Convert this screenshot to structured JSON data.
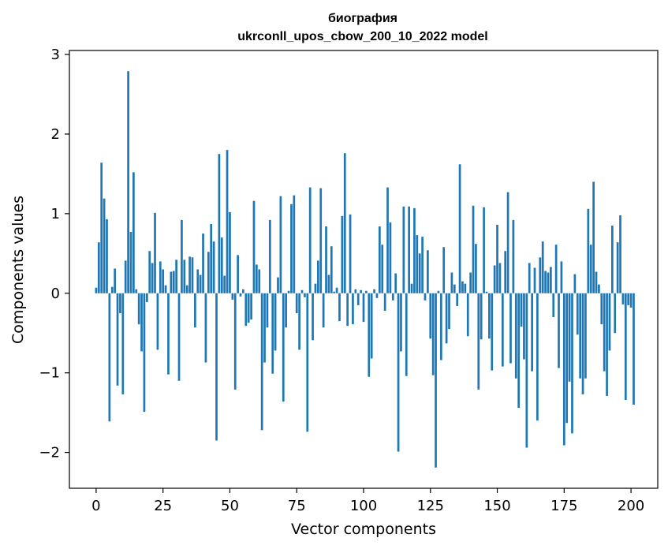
{
  "chart_data": {
    "type": "bar",
    "title_line1": "биография",
    "title_line2": "ukrconll_upos_cbow_200_10_2022 model",
    "xlabel": "Vector components",
    "ylabel": "Components values",
    "xlim": [
      -10,
      210
    ],
    "ylim": [
      -2.45,
      3.05
    ],
    "xticks": [
      0,
      25,
      50,
      75,
      100,
      125,
      150,
      175,
      200
    ],
    "xtick_labels": [
      "0",
      "25",
      "50",
      "75",
      "100",
      "125",
      "150",
      "175",
      "200"
    ],
    "yticks": [
      -2,
      -1,
      0,
      1,
      2,
      3
    ],
    "ytick_labels": [
      "−2",
      "−1",
      "0",
      "1",
      "2",
      "3"
    ],
    "bar_color": "#1f77b4",
    "values": [
      0.07,
      0.64,
      1.64,
      1.19,
      0.93,
      -1.61,
      0.08,
      0.31,
      -1.16,
      -0.25,
      -1.27,
      0.41,
      2.79,
      0.77,
      1.52,
      0.05,
      -0.39,
      -0.73,
      -1.49,
      -0.11,
      0.53,
      0.38,
      1.01,
      -0.71,
      0.4,
      0.3,
      0.1,
      -1.02,
      0.27,
      0.28,
      0.42,
      -1.1,
      0.92,
      0.42,
      0.1,
      0.46,
      0.45,
      -0.43,
      0.3,
      0.23,
      0.75,
      -0.87,
      0.52,
      0.87,
      0.65,
      -1.85,
      1.75,
      0.7,
      0.22,
      1.8,
      1.02,
      -0.08,
      -1.21,
      0.48,
      -0.04,
      0.05,
      -0.41,
      -0.37,
      -0.33,
      1.16,
      0.36,
      0.3,
      -1.72,
      -0.87,
      -0.43,
      0.92,
      -1.01,
      -0.72,
      0.2,
      1.22,
      -1.36,
      -0.43,
      0.03,
      1.12,
      1.23,
      -0.25,
      -0.71,
      0.04,
      -0.05,
      -1.74,
      1.33,
      -0.59,
      0.12,
      0.41,
      1.32,
      -0.43,
      0.84,
      0.23,
      0.59,
      0.02,
      0.07,
      -0.35,
      0.97,
      1.76,
      -0.41,
      0.99,
      -0.39,
      0.05,
      -0.15,
      0.04,
      -0.36,
      0.03,
      -1.05,
      -0.82,
      0.05,
      -0.06,
      0.84,
      0.61,
      -0.22,
      1.33,
      0.89,
      -0.09,
      0.25,
      -1.99,
      -0.73,
      1.09,
      -1.04,
      1.09,
      0.12,
      1.07,
      0.73,
      0.5,
      0.71,
      -0.09,
      0.54,
      -0.57,
      -1.03,
      -2.19,
      0.03,
      -0.84,
      0.58,
      -0.63,
      -0.45,
      0.26,
      0.11,
      -0.16,
      1.62,
      0.15,
      0.12,
      -0.54,
      0.26,
      1.1,
      0.62,
      -1.21,
      -0.58,
      1.08,
      0.02,
      -0.57,
      -0.97,
      0.35,
      0.86,
      0.38,
      -0.92,
      0.53,
      1.27,
      -0.88,
      0.92,
      -1.07,
      -1.44,
      -0.42,
      -0.83,
      -1.94,
      0.38,
      -0.98,
      0.32,
      -1.6,
      0.45,
      0.65,
      0.28,
      0.26,
      0.33,
      -0.3,
      0.61,
      -0.94,
      0.4,
      -1.91,
      -1.63,
      -1.11,
      -1.76,
      0.24,
      -0.52,
      -1.07,
      -1.27,
      -1.07,
      1.06,
      0.61,
      1.4,
      0.27,
      0.11,
      -0.39,
      -0.98,
      -1.29,
      -0.72,
      0.85,
      -0.5,
      0.64,
      0.98,
      -0.14,
      -1.34,
      -0.15,
      -0.18,
      -1.4
    ]
  }
}
